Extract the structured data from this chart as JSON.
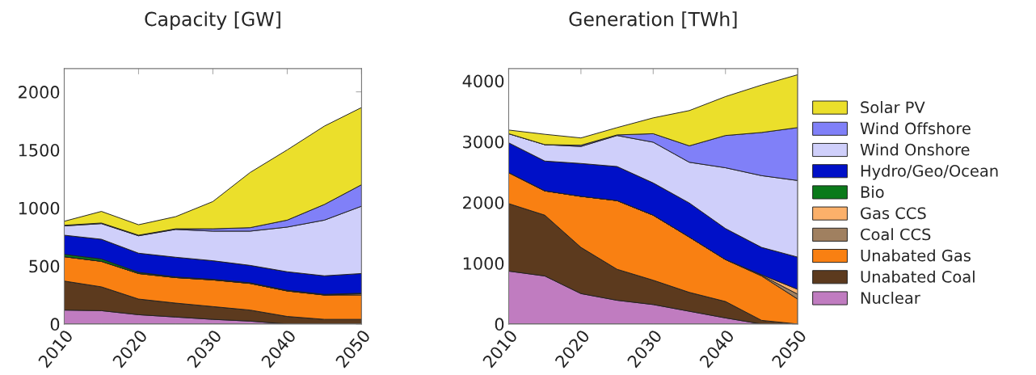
{
  "chart_data": [
    {
      "type": "area",
      "title": "Capacity [GW]",
      "stacked": true,
      "x": [
        2010,
        2015,
        2020,
        2025,
        2030,
        2035,
        2040,
        2045,
        2050
      ],
      "xlim": [
        2010,
        2050
      ],
      "xticks": [
        2010,
        2020,
        2030,
        2040,
        2050
      ],
      "ylim": [
        0,
        2200
      ],
      "yticks": [
        0,
        500,
        1000,
        1500,
        2000
      ],
      "grid": false,
      "legend": "right",
      "series": [
        {
          "name": "Nuclear",
          "color": "#c07cc0",
          "values": [
            120,
            115,
            80,
            60,
            40,
            25,
            0,
            0,
            0
          ]
        },
        {
          "name": "Unabated Coal",
          "color": "#5c3a1e",
          "values": [
            250,
            205,
            135,
            120,
            110,
            95,
            65,
            40,
            40
          ]
        },
        {
          "name": "Unabated Gas",
          "color": "#f98012",
          "values": [
            210,
            220,
            220,
            220,
            230,
            230,
            220,
            210,
            210
          ]
        },
        {
          "name": "Gas CCS",
          "color": "#fbb06a",
          "values": [
            0,
            0,
            0,
            0,
            0,
            0,
            0,
            0,
            10
          ]
        },
        {
          "name": "Bio",
          "color": "#0a7a1a",
          "values": [
            20,
            20,
            10,
            5,
            5,
            5,
            5,
            5,
            5
          ]
        },
        {
          "name": "Hydro/Geo/Ocean",
          "color": "#0010c8",
          "values": [
            165,
            170,
            165,
            170,
            160,
            150,
            160,
            160,
            170
          ]
        },
        {
          "name": "Wind Onshore",
          "color": "#cfcffa",
          "values": [
            80,
            135,
            150,
            240,
            255,
            295,
            385,
            480,
            580
          ]
        },
        {
          "name": "Wind Offshore",
          "color": "#8080f8",
          "values": [
            5,
            5,
            5,
            5,
            20,
            30,
            60,
            135,
            185
          ]
        },
        {
          "name": "Solar PV",
          "color": "#ebdf2b",
          "values": [
            35,
            100,
            90,
            105,
            235,
            475,
            605,
            675,
            665
          ]
        }
      ]
    },
    {
      "type": "area",
      "title": "Generation [TWh]",
      "stacked": true,
      "x": [
        2010,
        2015,
        2020,
        2025,
        2030,
        2035,
        2040,
        2045,
        2050
      ],
      "xlim": [
        2010,
        2050
      ],
      "xticks": [
        2010,
        2020,
        2030,
        2040,
        2050
      ],
      "ylim": [
        0,
        4200
      ],
      "yticks": [
        0,
        1000,
        2000,
        3000,
        4000
      ],
      "grid": false,
      "legend": "right",
      "series": [
        {
          "name": "Nuclear",
          "color": "#c07cc0",
          "values": [
            870,
            790,
            500,
            390,
            320,
            210,
            100,
            0,
            0
          ]
        },
        {
          "name": "Unabated Coal",
          "color": "#5c3a1e",
          "values": [
            1110,
            1000,
            760,
            510,
            400,
            310,
            270,
            60,
            0
          ]
        },
        {
          "name": "Unabated Gas",
          "color": "#f98012",
          "values": [
            510,
            400,
            840,
            1130,
            1070,
            910,
            690,
            730,
            410
          ]
        },
        {
          "name": "Coal CCS",
          "color": "#a08060",
          "values": [
            0,
            0,
            0,
            0,
            0,
            0,
            0,
            10,
            80
          ]
        },
        {
          "name": "Gas CCS",
          "color": "#fbb06a",
          "values": [
            0,
            0,
            0,
            0,
            0,
            0,
            0,
            10,
            80
          ]
        },
        {
          "name": "Hydro/Geo/Ocean",
          "color": "#0010c8",
          "values": [
            490,
            490,
            540,
            560,
            530,
            560,
            510,
            450,
            530
          ]
        },
        {
          "name": "Wind Onshore",
          "color": "#cfcffa",
          "values": [
            150,
            270,
            280,
            510,
            670,
            670,
            1000,
            1180,
            1260
          ]
        },
        {
          "name": "Wind Offshore",
          "color": "#8080f8",
          "values": [
            0,
            0,
            20,
            10,
            140,
            270,
            530,
            710,
            870
          ]
        },
        {
          "name": "Solar PV",
          "color": "#ebdf2b",
          "values": [
            60,
            170,
            120,
            120,
            260,
            580,
            640,
            780,
            870
          ]
        }
      ]
    }
  ]
}
